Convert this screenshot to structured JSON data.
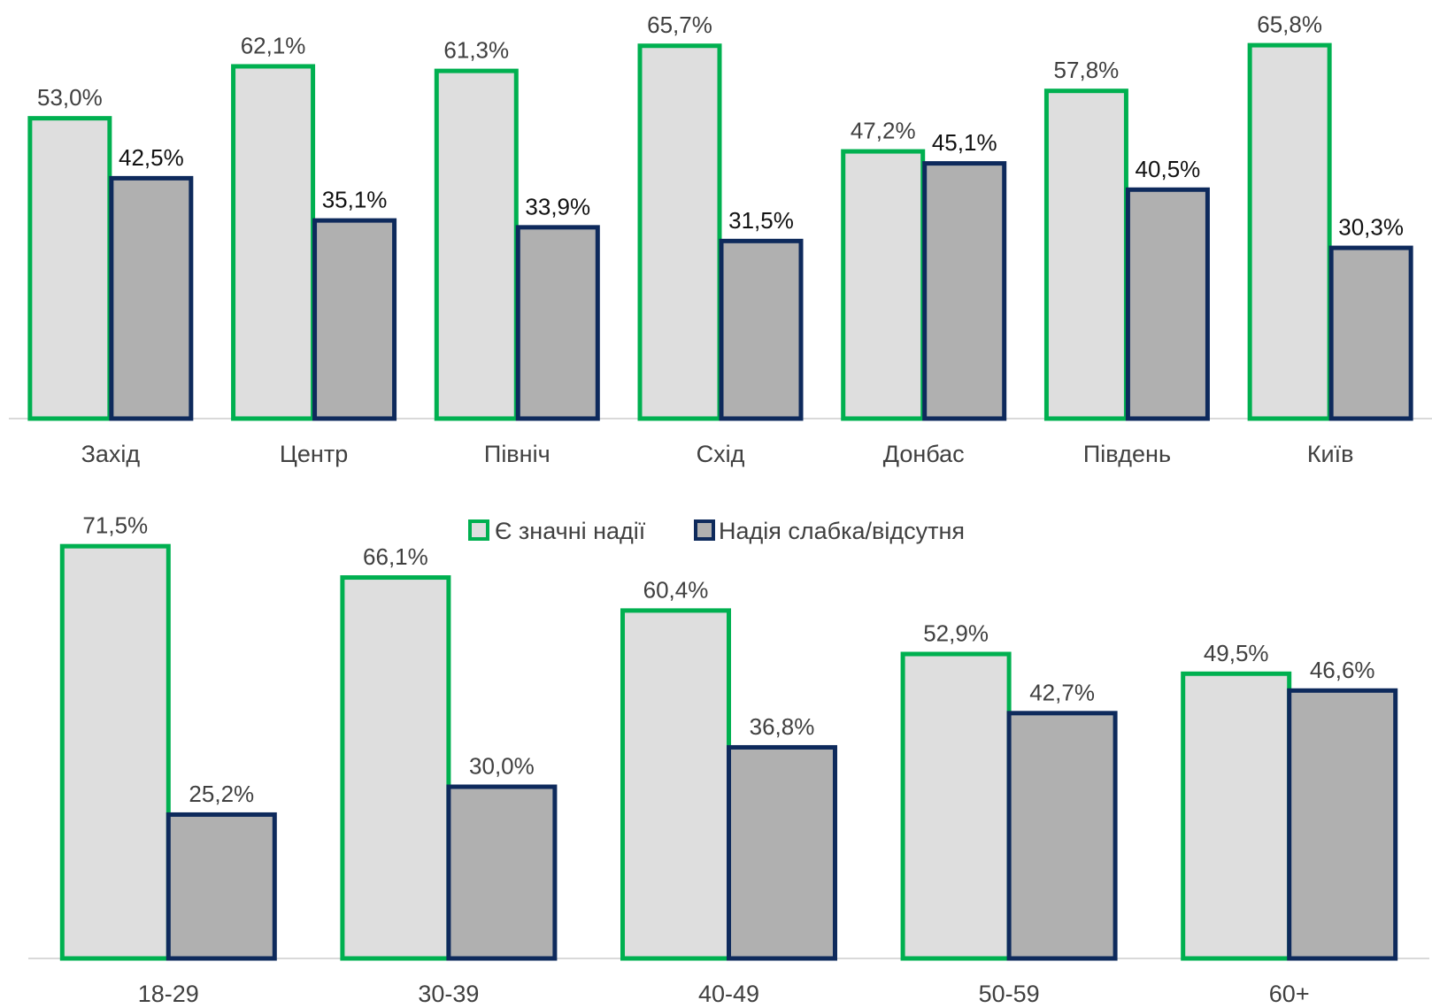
{
  "colors": {
    "series1_fill": "#dedede",
    "series1_stroke": "#00b050",
    "series2_fill": "#b0b0b0",
    "series2_stroke": "#0e2a5c",
    "axis": "#d9d9d9"
  },
  "legend": {
    "series1": "Є значні надії",
    "series2": "Надія слабка/відсутня"
  },
  "chart_data": [
    {
      "type": "bar",
      "categories": [
        "Захід",
        "Центр",
        "Північ",
        "Схід",
        "Донбас",
        "Південь",
        "Київ"
      ],
      "series": [
        {
          "name": "Є значні надії",
          "values": [
            53.0,
            62.1,
            61.3,
            65.7,
            47.2,
            57.8,
            65.8
          ],
          "labels": [
            "53,0%",
            "62,1%",
            "61,3%",
            "65,7%",
            "47,2%",
            "57,8%",
            "65,8%"
          ]
        },
        {
          "name": "Надія слабка/відсутня",
          "values": [
            42.5,
            35.1,
            33.9,
            31.5,
            45.1,
            40.5,
            30.3
          ],
          "labels": [
            "42,5%",
            "35,1%",
            "33,9%",
            "31,5%",
            "45,1%",
            "40,5%",
            "30,3%"
          ]
        }
      ],
      "legend_position": "bottom"
    },
    {
      "type": "bar",
      "categories": [
        "18-29",
        "30-39",
        "40-49",
        "50-59",
        "60+"
      ],
      "series": [
        {
          "name": "Є значні надії",
          "values": [
            71.5,
            66.1,
            60.4,
            52.9,
            49.5
          ],
          "labels": [
            "71,5%",
            "66,1%",
            "60,4%",
            "52,9%",
            "49,5%"
          ]
        },
        {
          "name": "Надія слабка/відсутня",
          "values": [
            25.2,
            30.0,
            36.8,
            42.7,
            46.6
          ],
          "labels": [
            "25,2%",
            "30,0%",
            "36,8%",
            "42,7%",
            "46,6%"
          ]
        }
      ]
    }
  ]
}
